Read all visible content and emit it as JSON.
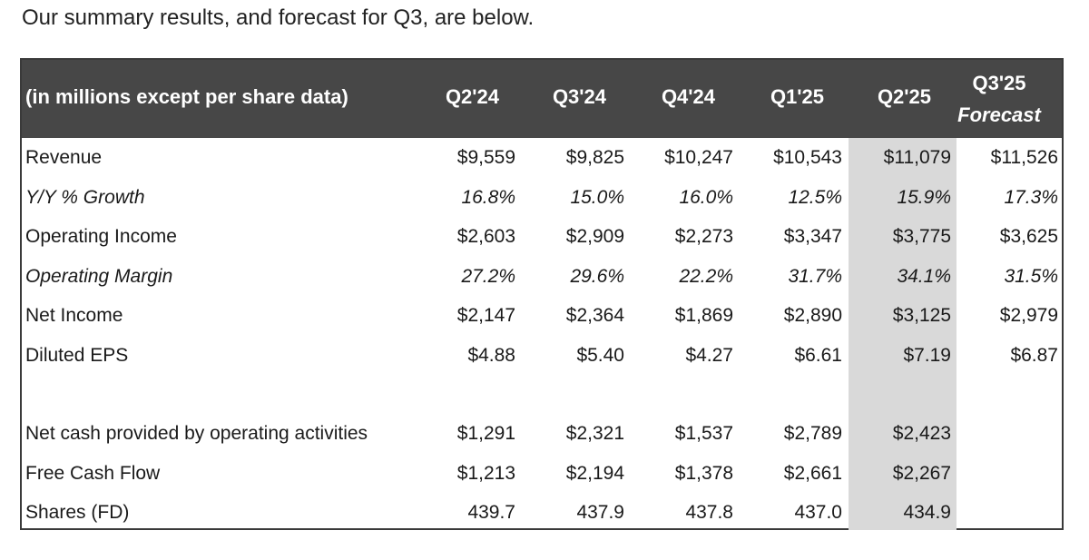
{
  "intro_text": "Our summary results, and forecast for Q3, are below.",
  "table": {
    "header_label": "(in millions except per share data)",
    "columns": [
      "Q2'24",
      "Q3'24",
      "Q4'24",
      "Q1'25",
      "Q2'25"
    ],
    "forecast_column": {
      "line1": "Q3'25",
      "line2": "Forecast"
    },
    "highlight_color": "#d9d9d9",
    "header_bg": "#474747",
    "rows": [
      {
        "label": "Revenue",
        "italic": false,
        "values": [
          "$9,559",
          "$9,825",
          "$10,247",
          "$10,543",
          "$11,079",
          "$11,526"
        ]
      },
      {
        "label": "Y/Y % Growth",
        "italic": true,
        "values": [
          "16.8%",
          "15.0%",
          "16.0%",
          "12.5%",
          "15.9%",
          "17.3%"
        ]
      },
      {
        "label": "Operating Income",
        "italic": false,
        "values": [
          "$2,603",
          "$2,909",
          "$2,273",
          "$3,347",
          "$3,775",
          "$3,625"
        ]
      },
      {
        "label": "Operating Margin",
        "italic": true,
        "values": [
          "27.2%",
          "29.6%",
          "22.2%",
          "31.7%",
          "34.1%",
          "31.5%"
        ]
      },
      {
        "label": "Net Income",
        "italic": false,
        "values": [
          "$2,147",
          "$2,364",
          "$1,869",
          "$2,890",
          "$3,125",
          "$2,979"
        ]
      },
      {
        "label": "Diluted EPS",
        "italic": false,
        "values": [
          "$4.88",
          "$5.40",
          "$4.27",
          "$6.61",
          "$7.19",
          "$6.87"
        ]
      },
      {
        "label": "Net cash provided by operating activities",
        "italic": false,
        "values": [
          "$1,291",
          "$2,321",
          "$1,537",
          "$2,789",
          "$2,423",
          ""
        ]
      },
      {
        "label": "Free Cash Flow",
        "italic": false,
        "values": [
          "$1,213",
          "$2,194",
          "$1,378",
          "$2,661",
          "$2,267",
          ""
        ]
      },
      {
        "label": "Shares (FD)",
        "italic": false,
        "values": [
          "439.7",
          "437.9",
          "437.8",
          "437.0",
          "434.9",
          ""
        ]
      }
    ]
  }
}
